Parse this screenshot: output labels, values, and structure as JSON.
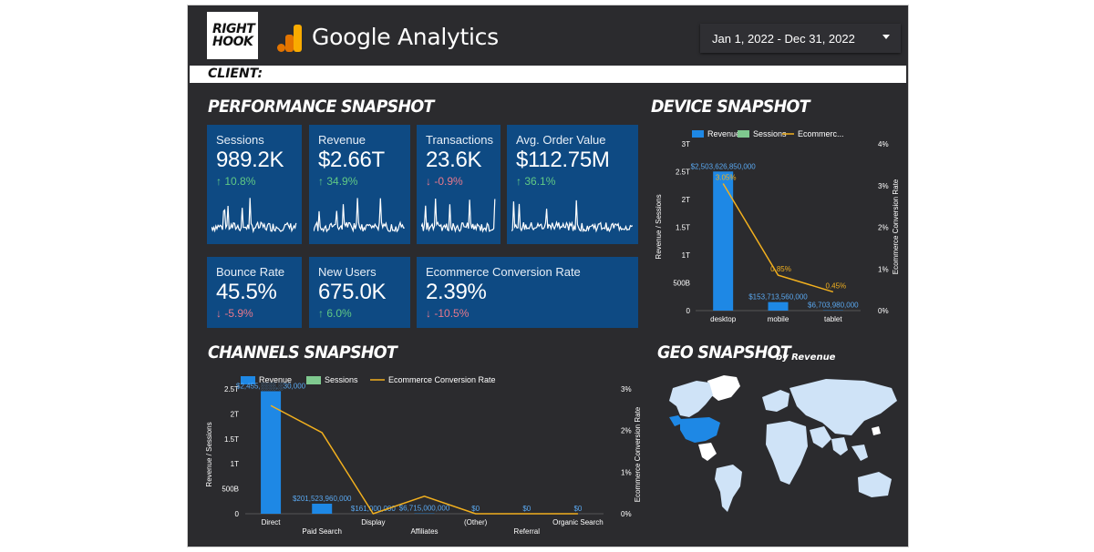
{
  "header": {
    "brand_line1": "RIGHT",
    "brand_line2": "HOOK",
    "ga_title": "Google Analytics",
    "date_range": "Jan 1, 2022 - Dec 31, 2022",
    "client_label": "CLIENT:"
  },
  "performance": {
    "title": "PERFORMANCE SNAPSHOT",
    "cards": [
      {
        "label": "Sessions",
        "value": "989.2K",
        "change": "10.8%",
        "direction": "up"
      },
      {
        "label": "Revenue",
        "value": "$2.66T",
        "change": "34.9%",
        "direction": "up"
      },
      {
        "label": "Transactions",
        "value": "23.6K",
        "change": "-0.9%",
        "direction": "down"
      },
      {
        "label": "Avg. Order Value",
        "value": "$112.75M",
        "change": "36.1%",
        "direction": "up"
      },
      {
        "label": "Bounce Rate",
        "value": "45.5%",
        "change": "-5.9%",
        "direction": "down"
      },
      {
        "label": "New Users",
        "value": "675.0K",
        "change": "6.0%",
        "direction": "up"
      },
      {
        "label": "Ecommerce Conversion Rate",
        "value": "2.39%",
        "change": "-10.5%",
        "direction": "down"
      }
    ]
  },
  "device": {
    "title": "DEVICE SNAPSHOT",
    "legend": [
      "Revenue",
      "Sessions",
      "Ecommerc..."
    ],
    "y_left_label": "Revenue / Sessions",
    "y_right_label": "Ecommerce Conversion Rate",
    "y_left_ticks": [
      "3T",
      "2.5T",
      "2T",
      "1.5T",
      "1T",
      "500B",
      "0"
    ],
    "y_right_ticks": [
      "4%",
      "3%",
      "2%",
      "1%",
      "0%"
    ]
  },
  "channels": {
    "title": "CHANNELS SNAPSHOT",
    "legend": [
      "Revenue",
      "Sessions",
      "Ecommerce Conversion Rate"
    ],
    "y_left_label": "Revenue / Sessions",
    "y_right_label": "Ecommerce Conversion Rate",
    "y_left_ticks": [
      "2.5T",
      "2T",
      "1.5T",
      "1T",
      "500B",
      "0"
    ],
    "y_right_ticks": [
      "3%",
      "2%",
      "1%",
      "0%"
    ]
  },
  "geo": {
    "title": "GEO SNAPSHOT",
    "subtitle": "by Revenue"
  },
  "colors": {
    "background": "#2b2b2e",
    "card": "#0e4a83",
    "revenue": "#1e88e5",
    "sessions": "#7fc98f",
    "conversion": "#f2b01e",
    "up": "#60c985",
    "down": "#e7788c"
  },
  "chart_data": [
    {
      "type": "bar",
      "name": "device",
      "categories": [
        "desktop",
        "mobile",
        "tablet"
      ],
      "series": [
        {
          "name": "Revenue",
          "values": [
            2503626850000,
            153713560000,
            6703980000
          ],
          "labels": [
            "$2,503,626,850,000",
            "$153,713,560,000",
            "$6,703,980,000"
          ]
        },
        {
          "name": "Ecommerce Conversion Rate",
          "type": "line",
          "values": [
            3.05,
            0.85,
            0.45
          ],
          "labels": [
            "3.05%",
            "0.85%",
            "0.45%"
          ]
        }
      ],
      "ylim": [
        0,
        3000000000000
      ],
      "y2lim": [
        0,
        4
      ]
    },
    {
      "type": "bar",
      "name": "channels",
      "categories": [
        "Direct",
        "Paid Search",
        "Display",
        "Affiliates",
        "(Other)",
        "Referral",
        "Organic Search"
      ],
      "series": [
        {
          "name": "Revenue",
          "values": [
            2455000000000,
            201523960000,
            161000000,
            6715000000,
            0,
            0,
            0
          ],
          "labels": [
            "$2,455,░░░,░30,000",
            "$201,523,960,000",
            "$161,000,000",
            "$6,715,000,000",
            "$0",
            "$0",
            "$0"
          ]
        },
        {
          "name": "Ecommerce Conversion Rate",
          "type": "line",
          "values": [
            2.6,
            1.95,
            0.0,
            0.42,
            0.0,
            0.0,
            0.0
          ]
        }
      ],
      "ylim": [
        0,
        2500000000000
      ],
      "y2lim": [
        0,
        3
      ]
    }
  ]
}
